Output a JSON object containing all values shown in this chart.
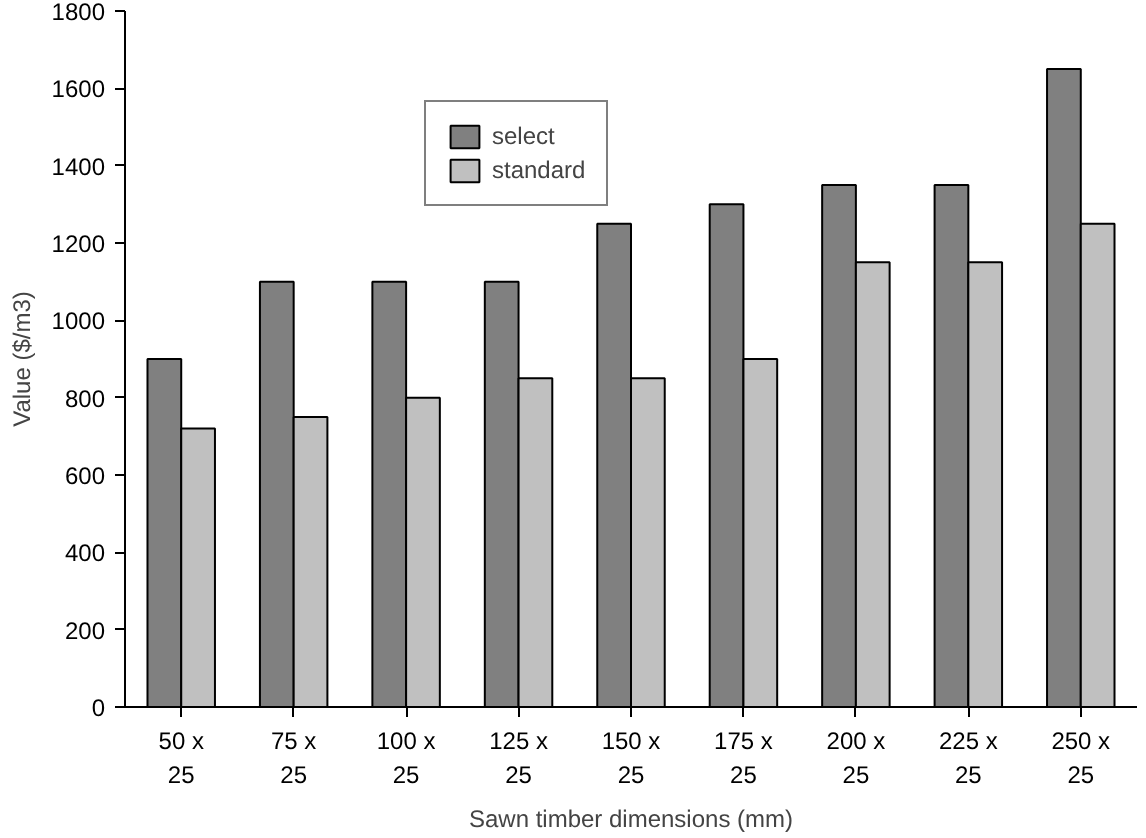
{
  "chart_data": {
    "type": "bar",
    "xlabel": "Sawn timber dimensions (mm)",
    "ylabel": "Value ($/m3)",
    "categories": [
      "50 x\n25",
      "75 x\n25",
      "100 x\n25",
      "125 x\n25",
      "150 x\n25",
      "175 x\n25",
      "200 x\n25",
      "225 x\n25",
      "250 x\n25"
    ],
    "series": [
      {
        "name": "select",
        "color": "#808080",
        "values": [
          900,
          1100,
          1100,
          1100,
          1250,
          1300,
          1350,
          1350,
          1650
        ]
      },
      {
        "name": "standard",
        "color": "#c0c0c0",
        "values": [
          720,
          750,
          800,
          850,
          850,
          900,
          1150,
          1150,
          1250
        ]
      }
    ],
    "ylim": [
      0,
      1800
    ],
    "yticks": [
      0,
      200,
      400,
      600,
      800,
      1000,
      1200,
      1400,
      1600,
      1800
    ],
    "grid": false,
    "legend": "top left"
  }
}
